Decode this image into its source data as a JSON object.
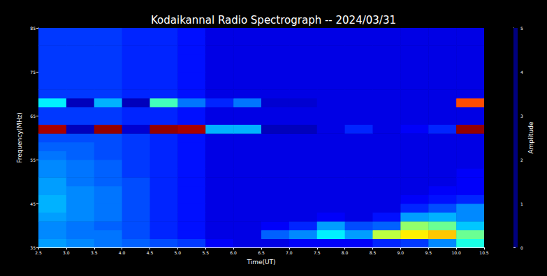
{
  "chart_data": {
    "type": "heatmap",
    "title": "Kodaikannal Radio Spectrograph -- 2024/03/31",
    "xlabel": "Time(UT)",
    "ylabel": "Frequency(MHz)",
    "x_bins": [
      2.5,
      3.0,
      3.5,
      4.0,
      4.5,
      5.0,
      5.5,
      6.0,
      6.5,
      7.0,
      7.5,
      8.0,
      8.5,
      9.0,
      9.5,
      10.0,
      10.5
    ],
    "y_bins": [
      35,
      37,
      39,
      41,
      43,
      45,
      47,
      49,
      51,
      53,
      55,
      57,
      59,
      61,
      63,
      65,
      67,
      69,
      71,
      73,
      75,
      77,
      79,
      81,
      83,
      85
    ],
    "cells": [
      [
        1.4,
        1.3,
        1.2,
        1.1,
        1.0,
        0.9,
        0.6,
        0.5,
        0.5,
        0.6,
        0.6,
        0.6,
        0.8,
        0.9,
        1.3,
        2.0
      ],
      [
        1.3,
        1.2,
        1.2,
        1.0,
        0.8,
        0.7,
        0.5,
        0.5,
        1.1,
        1.3,
        1.8,
        1.4,
        2.8,
        3.2,
        3.4,
        2.4
      ],
      [
        1.3,
        1.2,
        1.1,
        1.0,
        0.8,
        0.7,
        0.5,
        0.5,
        0.6,
        0.8,
        1.4,
        1.0,
        1.1,
        2.6,
        2.4,
        1.6
      ],
      [
        1.4,
        1.3,
        1.2,
        1.0,
        0.8,
        0.7,
        0.5,
        0.5,
        0.5,
        0.5,
        0.6,
        0.5,
        0.7,
        1.4,
        1.5,
        1.3
      ],
      [
        1.5,
        1.3,
        1.2,
        1.0,
        0.8,
        0.7,
        0.5,
        0.5,
        0.5,
        0.5,
        0.5,
        0.5,
        0.5,
        0.8,
        1.0,
        1.3
      ],
      [
        1.5,
        1.3,
        1.2,
        1.0,
        0.8,
        0.7,
        0.5,
        0.5,
        0.5,
        0.5,
        0.5,
        0.5,
        0.5,
        0.6,
        0.7,
        0.8
      ],
      [
        1.4,
        1.3,
        1.2,
        1.0,
        0.8,
        0.7,
        0.5,
        0.5,
        0.5,
        0.5,
        0.5,
        0.5,
        0.5,
        0.5,
        0.6,
        0.6
      ],
      [
        1.4,
        1.2,
        1.1,
        1.0,
        0.8,
        0.7,
        0.5,
        0.5,
        0.5,
        0.5,
        0.5,
        0.5,
        0.5,
        0.5,
        0.5,
        0.6
      ],
      [
        1.3,
        1.2,
        1.1,
        0.9,
        0.8,
        0.7,
        0.5,
        0.5,
        0.5,
        0.5,
        0.5,
        0.5,
        0.5,
        0.5,
        0.5,
        0.6
      ],
      [
        1.3,
        1.2,
        1.1,
        0.9,
        0.8,
        0.7,
        0.5,
        0.5,
        0.5,
        0.5,
        0.5,
        0.5,
        0.5,
        0.5,
        0.5,
        0.5
      ],
      [
        1.2,
        1.1,
        1.0,
        0.9,
        0.8,
        0.7,
        0.5,
        0.5,
        0.5,
        0.5,
        0.5,
        0.5,
        0.5,
        0.5,
        0.5,
        0.5
      ],
      [
        1.1,
        1.1,
        1.0,
        0.9,
        0.8,
        0.7,
        0.5,
        0.5,
        0.5,
        0.5,
        0.5,
        0.5,
        0.5,
        0.5,
        0.5,
        0.5
      ],
      [
        1.0,
        1.0,
        1.0,
        0.9,
        0.8,
        0.7,
        0.5,
        0.5,
        0.5,
        0.5,
        0.5,
        0.5,
        0.5,
        0.5,
        0.5,
        0.5
      ],
      [
        4.8,
        0.3,
        4.9,
        0.4,
        4.9,
        4.8,
        1.5,
        1.5,
        0.3,
        0.3,
        0.5,
        0.8,
        0.5,
        0.6,
        0.8,
        4.9
      ],
      [
        0.9,
        0.9,
        0.9,
        0.8,
        0.8,
        0.7,
        0.5,
        0.5,
        0.5,
        0.5,
        0.5,
        0.5,
        0.5,
        0.5,
        0.5,
        0.5
      ],
      [
        0.9,
        0.9,
        0.9,
        0.8,
        0.8,
        0.7,
        0.5,
        0.5,
        0.5,
        0.5,
        0.5,
        0.5,
        0.5,
        0.5,
        0.5,
        0.5
      ],
      [
        1.8,
        0.3,
        1.5,
        0.3,
        2.2,
        1.2,
        0.8,
        1.2,
        0.4,
        0.4,
        0.5,
        0.5,
        0.5,
        0.5,
        0.5,
        4.0
      ],
      [
        0.9,
        0.9,
        0.9,
        0.8,
        0.8,
        0.7,
        0.5,
        0.5,
        0.5,
        0.5,
        0.5,
        0.5,
        0.5,
        0.5,
        0.5,
        0.5
      ],
      [
        0.9,
        0.9,
        0.9,
        0.8,
        0.8,
        0.7,
        0.5,
        0.5,
        0.5,
        0.5,
        0.5,
        0.5,
        0.5,
        0.5,
        0.5,
        0.5
      ],
      [
        0.9,
        0.9,
        0.9,
        0.8,
        0.8,
        0.7,
        0.5,
        0.5,
        0.5,
        0.5,
        0.5,
        0.5,
        0.5,
        0.5,
        0.5,
        0.5
      ],
      [
        0.9,
        0.9,
        0.9,
        0.8,
        0.8,
        0.7,
        0.5,
        0.5,
        0.5,
        0.5,
        0.5,
        0.5,
        0.5,
        0.5,
        0.5,
        0.5
      ],
      [
        0.9,
        0.9,
        0.9,
        0.8,
        0.8,
        0.7,
        0.5,
        0.5,
        0.5,
        0.5,
        0.5,
        0.5,
        0.5,
        0.5,
        0.5,
        0.5
      ],
      [
        0.9,
        0.9,
        0.9,
        0.8,
        0.8,
        0.7,
        0.5,
        0.5,
        0.5,
        0.5,
        0.5,
        0.5,
        0.5,
        0.5,
        0.5,
        0.5
      ],
      [
        0.9,
        0.9,
        0.9,
        0.8,
        0.8,
        0.7,
        0.5,
        0.5,
        0.5,
        0.5,
        0.5,
        0.5,
        0.5,
        0.5,
        0.5,
        0.5
      ],
      [
        0.9,
        0.9,
        0.9,
        0.8,
        0.8,
        0.7,
        0.5,
        0.5,
        0.5,
        0.5,
        0.5,
        0.5,
        0.5,
        0.5,
        0.5,
        0.5
      ]
    ],
    "xlim": [
      2.5,
      10.5
    ],
    "xticks": [
      2.5,
      {
        "value": 3,
        "label": "3.0"
      },
      3.5,
      {
        "value": 4,
        "label": "4.0"
      },
      4.5,
      {
        "value": 5,
        "label": "5.0"
      },
      5.5,
      {
        "value": 6,
        "label": "6.0"
      },
      6.5,
      {
        "value": 7,
        "label": "7.0"
      },
      7.5,
      {
        "value": 8,
        "label": "8.0"
      },
      8.5,
      {
        "value": 9,
        "label": "9.0"
      },
      9.5,
      {
        "value": 10,
        "label": "10.0"
      },
      10.5
    ],
    "ylim": [
      35,
      85
    ],
    "yticks": [
      35,
      45,
      55,
      65,
      75,
      85
    ],
    "colorbar": {
      "label": "Amplitude",
      "lim": [
        0,
        5
      ],
      "ticks": [
        0,
        1,
        2,
        3,
        4,
        5
      ]
    }
  }
}
